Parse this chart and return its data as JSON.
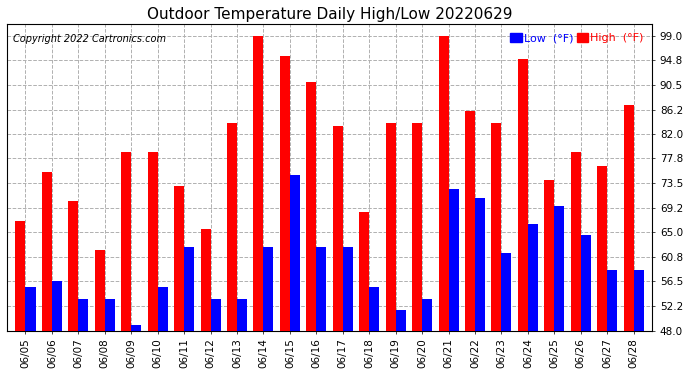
{
  "title": "Outdoor Temperature Daily High/Low 20220629",
  "copyright": "Copyright 2022 Cartronics.com",
  "legend_low": "Low",
  "legend_high": "High",
  "legend_unit": "(°F)",
  "dates": [
    "06/05",
    "06/06",
    "06/07",
    "06/08",
    "06/09",
    "06/10",
    "06/11",
    "06/12",
    "06/13",
    "06/14",
    "06/15",
    "06/16",
    "06/17",
    "06/18",
    "06/19",
    "06/20",
    "06/21",
    "06/22",
    "06/23",
    "06/24",
    "06/25",
    "06/26",
    "06/27",
    "06/28"
  ],
  "highs": [
    67.0,
    75.5,
    70.5,
    62.0,
    79.0,
    79.0,
    73.0,
    65.5,
    84.0,
    99.0,
    95.5,
    91.0,
    83.5,
    68.5,
    84.0,
    84.0,
    99.0,
    86.0,
    84.0,
    95.0,
    74.0,
    79.0,
    76.5,
    87.0
  ],
  "lows": [
    55.5,
    56.5,
    53.5,
    53.5,
    49.0,
    55.5,
    62.5,
    53.5,
    53.5,
    62.5,
    75.0,
    62.5,
    62.5,
    55.5,
    51.5,
    53.5,
    72.5,
    71.0,
    61.5,
    66.5,
    69.5,
    64.5,
    58.5,
    58.5
  ],
  "ylim_min": 48.0,
  "ylim_max": 101.0,
  "yticks": [
    48.0,
    52.2,
    56.5,
    60.8,
    65.0,
    69.2,
    73.5,
    77.8,
    82.0,
    86.2,
    90.5,
    94.8,
    99.0
  ],
  "bar_width": 0.38,
  "high_color": "#ff0000",
  "low_color": "#0000ff",
  "background_color": "#ffffff",
  "grid_color": "#b0b0b0",
  "title_fontsize": 11,
  "copyright_fontsize": 7,
  "tick_fontsize": 7.5,
  "legend_fontsize": 8
}
